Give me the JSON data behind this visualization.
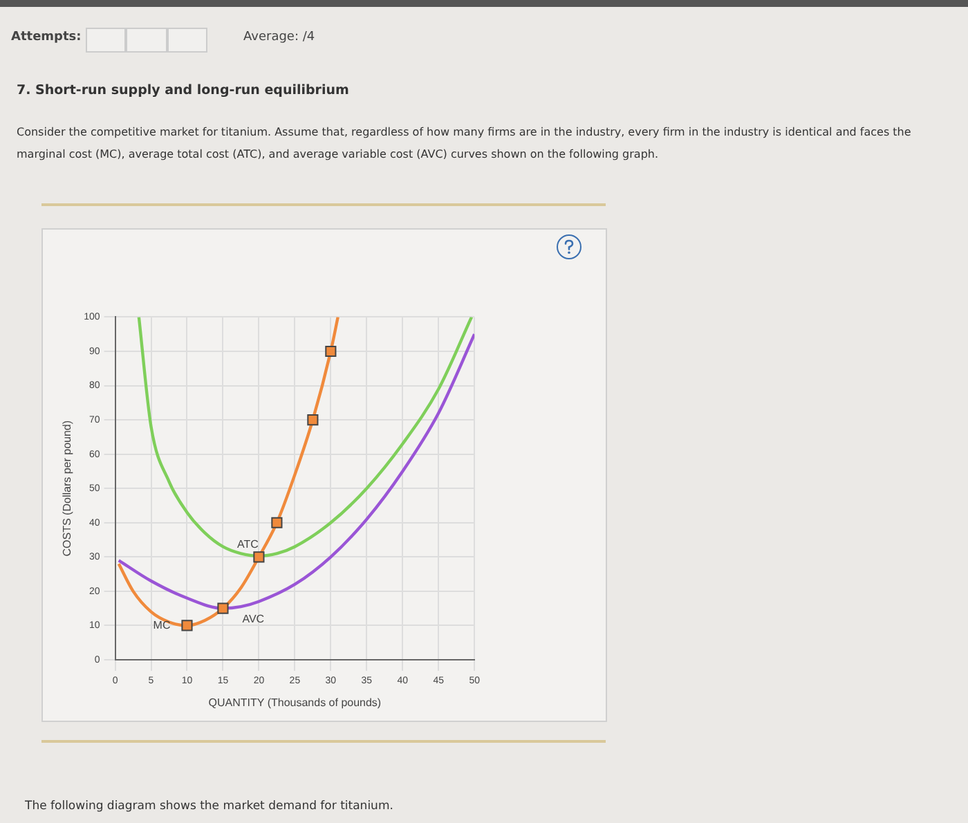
{
  "chart_data": {
    "type": "line",
    "title": "7. Short-run supply and long-run equilibrium",
    "subtitle": "Consider the competitive market for titanium. Assume that, regardless of how many firms are in the industry, every firm in the industry is identical and faces the marginal cost (MC), average total cost (ATC), and average variable cost (AVC) curves shown on the following graph.",
    "xlabel": "QUANTITY (Thousands of pounds)",
    "ylabel": "COSTS (Dollars per pound)",
    "annotations": [
      "Attempts:",
      "Average: /4",
      "The following diagram shows the market demand for titanium."
    ],
    "xlim": [
      0,
      50
    ],
    "ylim": [
      0,
      100
    ],
    "xticks": [
      0,
      5,
      10,
      15,
      20,
      25,
      30,
      35,
      40,
      45,
      50
    ],
    "yticks": [
      0,
      10,
      20,
      30,
      40,
      50,
      60,
      70,
      80,
      90,
      100
    ],
    "grid": true,
    "legend": false,
    "marker": "none",
    "line_style": "solid",
    "series": [
      {
        "name": "MC",
        "color": "#f08a3c",
        "x": [
          0.5,
          2.5,
          5,
          7.5,
          10,
          12.5,
          15,
          17.5,
          20,
          22.5,
          25,
          27.5,
          30,
          31
        ],
        "values": [
          28,
          20,
          14,
          11,
          10,
          11.5,
          15,
          21,
          30,
          40,
          54,
          70,
          90,
          100
        ]
      },
      {
        "name": "ATC",
        "color": "#7fcf5a",
        "x": [
          3.3,
          5,
          7.5,
          10,
          12.5,
          15,
          17.5,
          20,
          22.5,
          25,
          30,
          35,
          40,
          45,
          49.6
        ],
        "values": [
          100,
          68,
          52,
          43,
          37,
          33,
          31,
          30.3,
          31,
          33,
          40,
          50,
          63,
          79,
          100
        ]
      },
      {
        "name": "AVC",
        "color": "#9a55d6",
        "x": [
          0.5,
          5,
          10,
          15,
          17.5,
          20,
          25,
          30,
          35,
          40,
          45,
          50
        ],
        "values": [
          29,
          23,
          18,
          15,
          15.5,
          17,
          22,
          30,
          41,
          55,
          72,
          95
        ]
      },
      {
        "type": "scatter",
        "color": "#f08a3c",
        "marker": "square",
        "x": [
          10,
          15,
          20,
          22.5,
          27.5,
          30
        ],
        "values": [
          10,
          15,
          30,
          40,
          70,
          90
        ]
      }
    ]
  }
}
